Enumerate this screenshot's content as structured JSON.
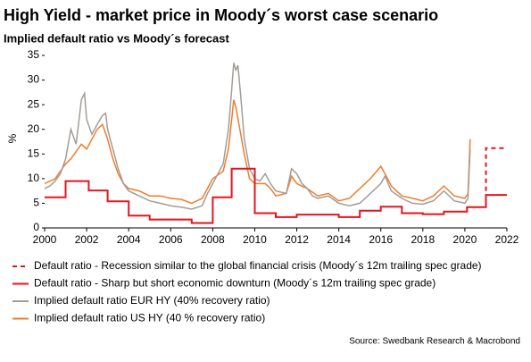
{
  "chart_data": {
    "type": "line",
    "title": "High Yield - market price in Moody´s worst case scenario",
    "subtitle": "Implied default ratio vs Moody´s forecast",
    "y_label": "%",
    "source": "Source: Swedbank Research & Macrobond",
    "xlim": [
      2000,
      2022
    ],
    "xticks": [
      2000,
      2002,
      2004,
      2006,
      2008,
      2010,
      2012,
      2014,
      2016,
      2018,
      2020,
      2022
    ],
    "ylim": [
      0,
      35
    ],
    "yticks": [
      0,
      5,
      10,
      15,
      20,
      25,
      30,
      35
    ],
    "series": [
      {
        "name": "Default ratio - Recession similar to the global financial crisis (Moody´s 12m trailing spec grade)",
        "color": "#e3161e",
        "style": "dashed",
        "x": [
          2021,
          2021,
          2022
        ],
        "values": [
          4.2,
          16.2,
          16.2
        ]
      },
      {
        "name": "Default ratio - Sharp but short economic downturn (Moody´s 12m trailing spec grade)",
        "color": "#e3161e",
        "style": "solid",
        "x": [
          2000,
          2001,
          2001,
          2002.1,
          2002.1,
          2003,
          2003,
          2004,
          2004,
          2005,
          2005,
          2007,
          2007,
          2008,
          2008,
          2008.9,
          2008.9,
          2010,
          2010,
          2011,
          2011,
          2012,
          2012,
          2014,
          2014,
          2015,
          2015,
          2016,
          2016,
          2017,
          2017,
          2018,
          2018,
          2019,
          2019,
          2020.1,
          2020.1,
          2021,
          2021,
          2022
        ],
        "values": [
          6.2,
          6.2,
          9.5,
          9.5,
          7.6,
          7.6,
          5.4,
          5.4,
          2.5,
          2.5,
          1.7,
          1.7,
          1,
          1,
          6.2,
          6.2,
          12,
          12,
          3,
          3,
          2.2,
          2.2,
          2.7,
          2.7,
          2.2,
          2.2,
          3.5,
          3.5,
          4.3,
          4.3,
          3,
          3,
          2.8,
          2.8,
          3.3,
          3.3,
          4.2,
          4.2,
          6.7,
          6.7
        ]
      },
      {
        "name": "Implied default ratio EUR HY (40% recovery ratio)",
        "color": "#a39d97",
        "style": "solid",
        "x": [
          2000,
          2000.25,
          2000.5,
          2000.75,
          2001,
          2001.25,
          2001.5,
          2001.75,
          2001.9,
          2002,
          2002.25,
          2002.5,
          2002.75,
          2002.9,
          2003,
          2003.25,
          2003.5,
          2003.75,
          2004,
          2004.5,
          2005,
          2005.5,
          2006,
          2006.5,
          2007,
          2007.5,
          2007.75,
          2008,
          2008.25,
          2008.5,
          2008.75,
          2008.9,
          2009,
          2009.1,
          2009.2,
          2009.35,
          2009.5,
          2009.75,
          2010,
          2010.25,
          2010.5,
          2010.75,
          2011,
          2011.5,
          2011.75,
          2012,
          2012.25,
          2012.5,
          2012.75,
          2013,
          2013.5,
          2014,
          2014.5,
          2015,
          2015.5,
          2016,
          2016.2,
          2016.5,
          2017,
          2017.5,
          2018,
          2018.5,
          2019,
          2019.5,
          2020,
          2020.15,
          2020.25
        ],
        "values": [
          8,
          8.5,
          9.5,
          11,
          14,
          20,
          17,
          26,
          27.3,
          22,
          19,
          21,
          22.8,
          23.3,
          20,
          16,
          12,
          9,
          7.5,
          6.5,
          5.5,
          5,
          4.5,
          4.2,
          3.8,
          4.5,
          7,
          9,
          11,
          13,
          20,
          28,
          33.5,
          32,
          33,
          26,
          18,
          12,
          10,
          9.5,
          11,
          9,
          7.5,
          7,
          12,
          11,
          9,
          8,
          6.5,
          6,
          6.5,
          5,
          4.5,
          5,
          7,
          9,
          10.5,
          7.5,
          6,
          5,
          4.8,
          5.5,
          7.5,
          5.5,
          5,
          6,
          16
        ]
      },
      {
        "name": "Implied default ratio US HY (40 % recovery ratio)",
        "color": "#ef7d2d",
        "style": "solid",
        "x": [
          2000,
          2000.5,
          2001,
          2001.25,
          2001.75,
          2002,
          2002.5,
          2002.75,
          2003,
          2003.25,
          2003.5,
          2003.75,
          2004,
          2004.5,
          2005,
          2005.5,
          2006,
          2006.5,
          2007,
          2007.5,
          2007.75,
          2008,
          2008.5,
          2008.75,
          2008.9,
          2009,
          2009.1,
          2009.25,
          2009.5,
          2009.75,
          2010,
          2010.5,
          2010.75,
          2011,
          2011.5,
          2011.75,
          2012,
          2012.5,
          2013,
          2013.5,
          2014,
          2014.5,
          2015,
          2015.5,
          2016,
          2016.2,
          2016.5,
          2017,
          2017.5,
          2018,
          2018.5,
          2019,
          2019.5,
          2020,
          2020.15,
          2020.25
        ],
        "values": [
          9,
          10,
          13,
          14,
          17,
          16,
          20,
          21,
          18,
          14,
          11,
          9,
          8,
          7.5,
          6.5,
          6.5,
          6,
          5.8,
          5,
          6,
          8,
          10,
          11.5,
          16,
          22,
          26,
          24.5,
          21,
          15,
          10,
          9,
          9,
          8,
          6.5,
          7,
          10.5,
          9,
          8,
          6.5,
          7,
          5.5,
          6,
          8,
          10,
          12.5,
          11,
          8.5,
          6.5,
          6,
          5.5,
          6.5,
          8.5,
          6.5,
          6,
          7,
          18
        ]
      }
    ]
  }
}
